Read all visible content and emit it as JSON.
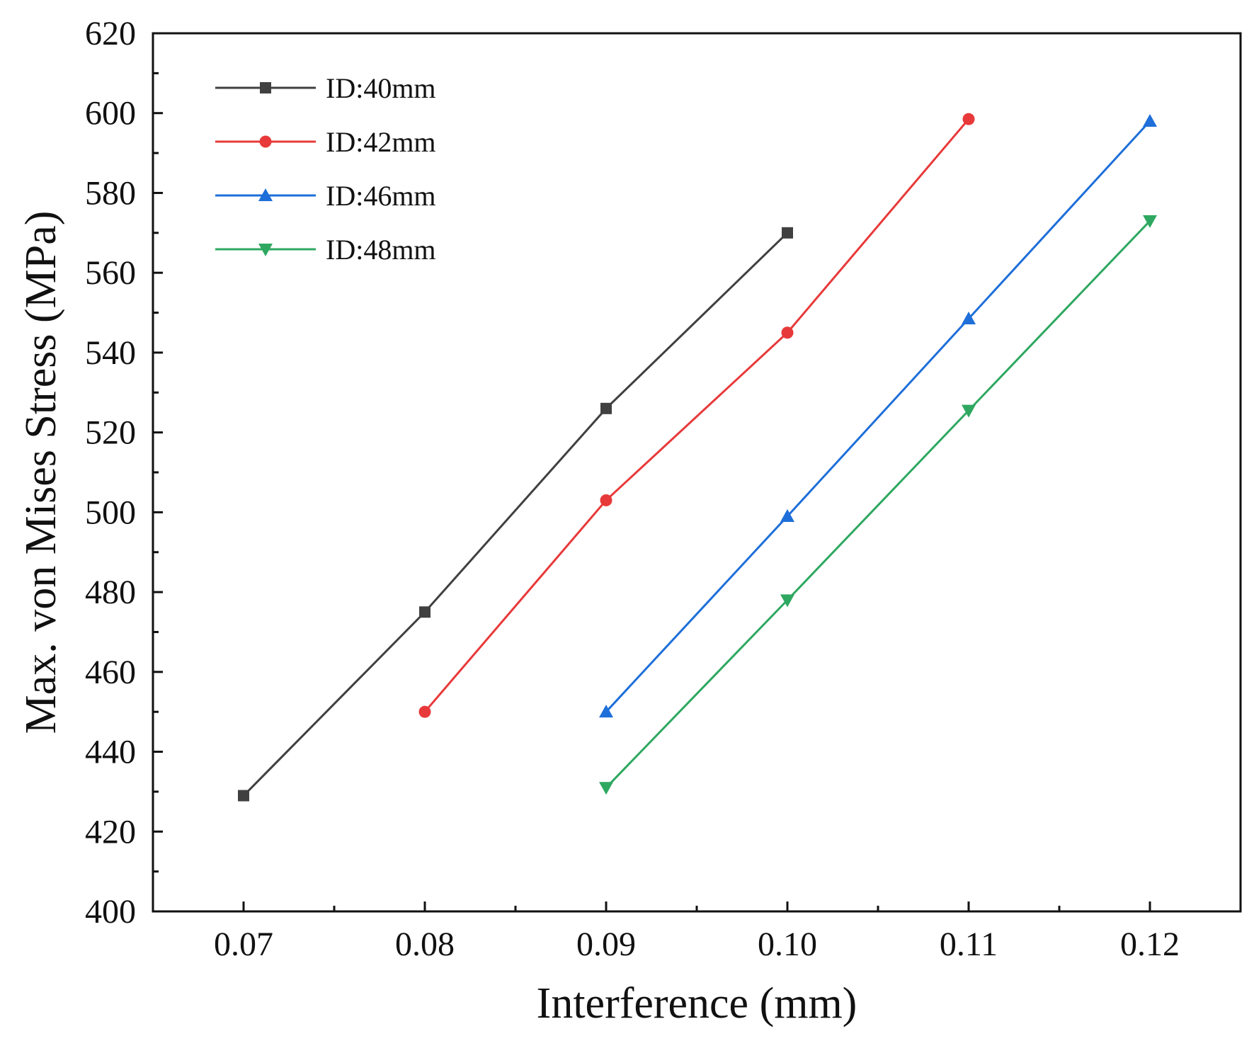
{
  "chart_data": {
    "type": "line",
    "title": "",
    "xlabel": "Interference (mm)",
    "ylabel": "Max. von Mises Stress (MPa)",
    "xlim": [
      0.065,
      0.125
    ],
    "ylim": [
      400,
      620
    ],
    "xticks": [
      0.07,
      0.08,
      0.09,
      0.1,
      0.11,
      0.12
    ],
    "xtick_labels": [
      "0.07",
      "0.08",
      "0.09",
      "0.10",
      "0.11",
      "0.12"
    ],
    "yticks": [
      400,
      420,
      440,
      460,
      480,
      500,
      520,
      540,
      560,
      580,
      600,
      620
    ],
    "ytick_labels": [
      "400",
      "420",
      "440",
      "460",
      "480",
      "500",
      "520",
      "540",
      "560",
      "580",
      "600",
      "620"
    ],
    "grid": false,
    "legend_position": "top-left",
    "series": [
      {
        "name": "ID:40mm",
        "color": "#404040",
        "marker": "square",
        "x": [
          0.07,
          0.08,
          0.09,
          0.1
        ],
        "y": [
          429,
          475,
          526,
          570
        ]
      },
      {
        "name": "ID:42mm",
        "color": "#e8393a",
        "marker": "circle",
        "x": [
          0.08,
          0.09,
          0.1,
          0.11
        ],
        "y": [
          450,
          503,
          545,
          598.5
        ]
      },
      {
        "name": "ID:46mm",
        "color": "#1e6fd9",
        "marker": "triangle-up",
        "x": [
          0.09,
          0.1,
          0.11,
          0.12
        ],
        "y": [
          450,
          499,
          548.5,
          598
        ]
      },
      {
        "name": "ID:48mm",
        "color": "#2ea860",
        "marker": "triangle-down",
        "x": [
          0.09,
          0.1,
          0.11,
          0.12
        ],
        "y": [
          431,
          478,
          525.5,
          573
        ]
      }
    ]
  }
}
